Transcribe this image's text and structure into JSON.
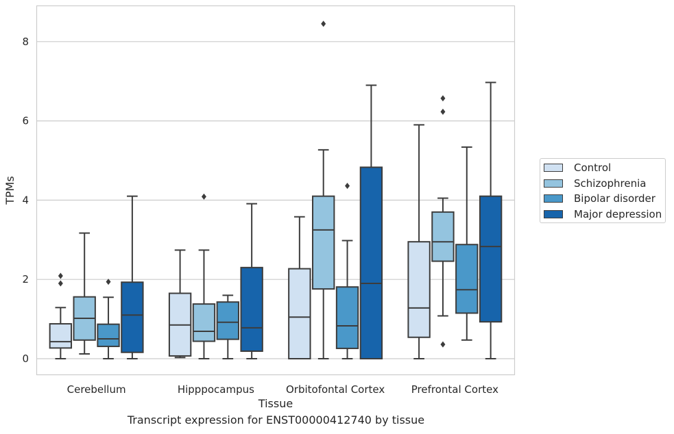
{
  "chart_data": {
    "type": "box",
    "xlabel": "Tissue",
    "ylabel": "TPMs",
    "ylim": [
      -0.4,
      8.9
    ],
    "yticks": [
      0,
      2,
      4,
      6,
      8
    ],
    "grid": "horizontal",
    "legend_position": "right",
    "categories": [
      "Cerebellum",
      "Hipppocampus",
      "Orbitofontal Cortex",
      "Prefrontal Cortex"
    ],
    "series": [
      {
        "name": "Control",
        "color": "#d0e1f2",
        "boxes": [
          {
            "whisker_low": 0,
            "q1": 0.27,
            "median": 0.43,
            "q3": 0.88,
            "whisker_high": 1.29,
            "outliers": [
              1.9,
              2.09
            ]
          },
          {
            "whisker_low": 0.03,
            "q1": 0.07,
            "median": 0.85,
            "q3": 1.65,
            "whisker_high": 2.74,
            "outliers": []
          },
          {
            "whisker_low": 0,
            "q1": 0,
            "median": 1.05,
            "q3": 2.27,
            "whisker_high": 3.58,
            "outliers": []
          },
          {
            "whisker_low": 0,
            "q1": 0.54,
            "median": 1.28,
            "q3": 2.95,
            "whisker_high": 5.9,
            "outliers": []
          }
        ]
      },
      {
        "name": "Schizophrenia",
        "color": "#94c4df",
        "boxes": [
          {
            "whisker_low": 0.12,
            "q1": 0.47,
            "median": 1.02,
            "q3": 1.56,
            "whisker_high": 3.17,
            "outliers": []
          },
          {
            "whisker_low": 0,
            "q1": 0.44,
            "median": 0.69,
            "q3": 1.38,
            "whisker_high": 2.74,
            "outliers": [
              4.09
            ]
          },
          {
            "whisker_low": 0,
            "q1": 1.76,
            "median": 3.25,
            "q3": 4.1,
            "whisker_high": 5.27,
            "outliers": [
              8.45
            ]
          },
          {
            "whisker_low": 1.08,
            "q1": 2.46,
            "median": 2.95,
            "q3": 3.7,
            "whisker_high": 4.05,
            "outliers": [
              0.36,
              6.23,
              6.57
            ]
          }
        ]
      },
      {
        "name": "Bipolar disorder",
        "color": "#4a98c9",
        "boxes": [
          {
            "whisker_low": 0,
            "q1": 0.31,
            "median": 0.5,
            "q3": 0.87,
            "whisker_high": 1.55,
            "outliers": [
              1.94
            ]
          },
          {
            "whisker_low": 0,
            "q1": 0.49,
            "median": 0.92,
            "q3": 1.43,
            "whisker_high": 1.6,
            "outliers": []
          },
          {
            "whisker_low": 0,
            "q1": 0.26,
            "median": 0.83,
            "q3": 1.81,
            "whisker_high": 2.98,
            "outliers": [
              4.36
            ]
          },
          {
            "whisker_low": 0.47,
            "q1": 1.15,
            "median": 1.74,
            "q3": 2.88,
            "whisker_high": 5.34,
            "outliers": []
          }
        ]
      },
      {
        "name": "Major depression",
        "color": "#1764ab",
        "boxes": [
          {
            "whisker_low": 0,
            "q1": 0.16,
            "median": 1.1,
            "q3": 1.93,
            "whisker_high": 4.1,
            "outliers": []
          },
          {
            "whisker_low": 0,
            "q1": 0.19,
            "median": 0.78,
            "q3": 2.3,
            "whisker_high": 3.91,
            "outliers": []
          },
          {
            "whisker_low": 0,
            "q1": 0,
            "median": 1.9,
            "q3": 4.83,
            "whisker_high": 6.9,
            "outliers": []
          },
          {
            "whisker_low": 0,
            "q1": 0.93,
            "median": 2.83,
            "q3": 4.1,
            "whisker_high": 6.97,
            "outliers": []
          }
        ]
      }
    ]
  },
  "caption": "Transcript expression for ENST00000412740 by tissue"
}
